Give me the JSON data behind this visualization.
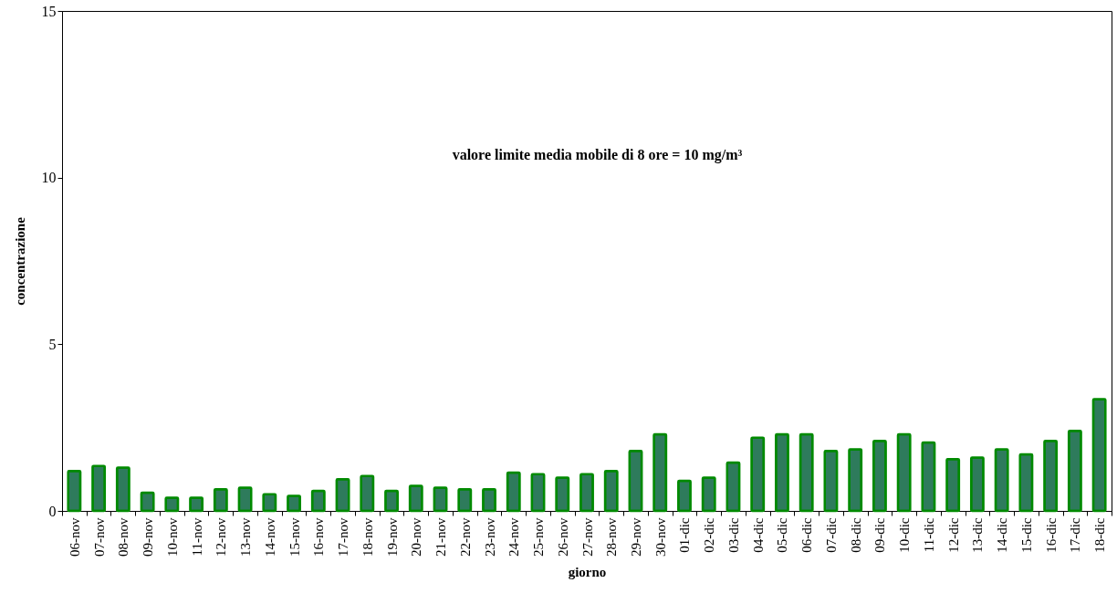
{
  "chart_data": {
    "type": "bar",
    "xlabel": "giorno",
    "ylabel": "concentrazione",
    "annotations": [
      "valore limite media mobile di 8 ore = 10 mg/m³"
    ],
    "categories": [
      "06-nov",
      "07-nov",
      "08-nov",
      "09-nov",
      "10-nov",
      "11-nov",
      "12-nov",
      "13-nov",
      "14-nov",
      "15-nov",
      "16-nov",
      "17-nov",
      "18-nov",
      "19-nov",
      "20-nov",
      "21-nov",
      "22-nov",
      "23-nov",
      "24-nov",
      "25-nov",
      "26-nov",
      "27-nov",
      "28-nov",
      "29-nov",
      "30-nov",
      "01-dic",
      "02-dic",
      "03-dic",
      "04-dic",
      "05-dic",
      "06-dic",
      "07-dic",
      "08-dic",
      "09-dic",
      "10-dic",
      "11-dic",
      "12-dic",
      "13-dic",
      "14-dic",
      "15-dic",
      "16-dic",
      "17-dic",
      "18-dic"
    ],
    "values": [
      1.2,
      1.35,
      1.3,
      0.55,
      0.4,
      0.4,
      0.65,
      0.7,
      0.5,
      0.45,
      0.6,
      0.95,
      1.05,
      0.6,
      0.75,
      0.7,
      0.65,
      0.65,
      1.15,
      1.1,
      1.0,
      1.1,
      1.2,
      1.8,
      2.3,
      0.9,
      1.0,
      1.45,
      2.2,
      2.3,
      2.3,
      1.8,
      1.85,
      2.1,
      2.3,
      2.05,
      1.55,
      1.6,
      1.85,
      1.7,
      2.1,
      2.4,
      3.35
    ],
    "color": "#2e7b5c",
    "ylim": [
      0,
      15
    ],
    "yticks": [
      0,
      5,
      10,
      15
    ],
    "grid": false
  }
}
